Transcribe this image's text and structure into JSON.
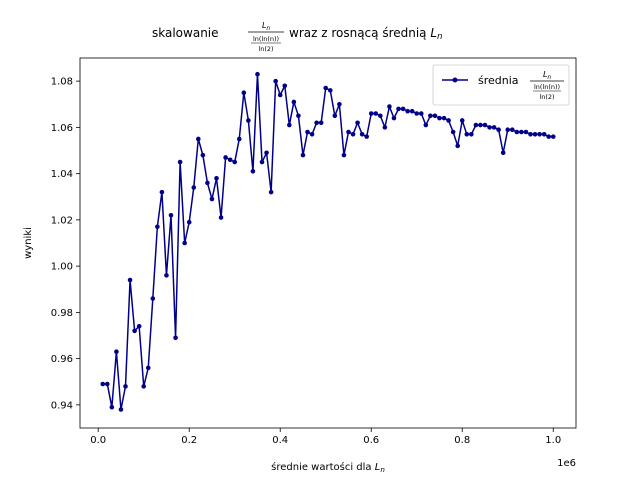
{
  "chart_data": {
    "type": "line",
    "title": {
      "prefix": "skalowanie",
      "frac_numerator": "L_n",
      "frac_denominator_top": "ln(ln(n))",
      "frac_denominator_bottom": "ln(2)",
      "suffix": "wraz z rosnącą średnią L_n"
    },
    "xlabel": "średnie wartości dla L_n",
    "ylabel": "wyniki",
    "x_offset_label": "1e6",
    "xlim": [
      -40000,
      1050000
    ],
    "ylim": [
      0.93,
      1.09
    ],
    "x_ticks": [
      0,
      200000,
      400000,
      600000,
      800000,
      1000000
    ],
    "x_tick_labels": [
      "0.0",
      "0.2",
      "0.4",
      "0.6",
      "0.8",
      "1.0"
    ],
    "y_ticks": [
      0.94,
      0.96,
      0.98,
      1.0,
      1.02,
      1.04,
      1.06,
      1.08
    ],
    "y_tick_labels": [
      "0.94",
      "0.96",
      "0.98",
      "1.00",
      "1.02",
      "1.04",
      "1.06",
      "1.08"
    ],
    "grid": false,
    "legend_position": "top-right",
    "color": "#00008b",
    "series": [
      {
        "name": "średnia",
        "x": [
          10000,
          20000,
          30000,
          40000,
          50000,
          60000,
          70000,
          80000,
          90000,
          100000,
          110000,
          120000,
          130000,
          140000,
          150000,
          160000,
          170000,
          180000,
          190000,
          200000,
          210000,
          220000,
          230000,
          240000,
          250000,
          260000,
          270000,
          280000,
          290000,
          300000,
          310000,
          320000,
          330000,
          340000,
          350000,
          360000,
          370000,
          380000,
          390000,
          400000,
          410000,
          420000,
          430000,
          440000,
          450000,
          460000,
          470000,
          480000,
          490000,
          500000,
          510000,
          520000,
          530000,
          540000,
          550000,
          560000,
          570000,
          580000,
          590000,
          600000,
          610000,
          620000,
          630000,
          640000,
          650000,
          660000,
          670000,
          680000,
          690000,
          700000,
          710000,
          720000,
          730000,
          740000,
          750000,
          760000,
          770000,
          780000,
          790000,
          800000,
          810000,
          820000,
          830000,
          840000,
          850000,
          860000,
          870000,
          880000,
          890000,
          900000,
          910000,
          920000,
          930000,
          940000,
          950000,
          960000,
          970000,
          980000,
          990000,
          1000000
        ],
        "values": [
          0.949,
          0.949,
          0.939,
          0.963,
          0.938,
          0.948,
          0.994,
          0.972,
          0.974,
          0.948,
          0.956,
          0.986,
          1.017,
          1.032,
          0.996,
          1.022,
          0.969,
          1.045,
          1.01,
          1.019,
          1.034,
          1.055,
          1.048,
          1.036,
          1.029,
          1.038,
          1.021,
          1.047,
          1.046,
          1.045,
          1.055,
          1.075,
          1.063,
          1.041,
          1.083,
          1.045,
          1.049,
          1.032,
          1.08,
          1.074,
          1.078,
          1.061,
          1.071,
          1.065,
          1.048,
          1.058,
          1.057,
          1.062,
          1.062,
          1.077,
          1.076,
          1.065,
          1.07,
          1.048,
          1.058,
          1.057,
          1.062,
          1.057,
          1.056,
          1.066,
          1.066,
          1.065,
          1.06,
          1.069,
          1.064,
          1.068,
          1.068,
          1.067,
          1.067,
          1.066,
          1.066,
          1.061,
          1.065,
          1.065,
          1.064,
          1.064,
          1.063,
          1.058,
          1.052,
          1.063,
          1.057,
          1.057,
          1.061,
          1.061,
          1.061,
          1.06,
          1.06,
          1.059,
          1.049,
          1.059,
          1.059,
          1.058,
          1.058,
          1.058,
          1.057,
          1.057,
          1.057,
          1.057,
          1.056,
          1.056
        ]
      }
    ]
  }
}
